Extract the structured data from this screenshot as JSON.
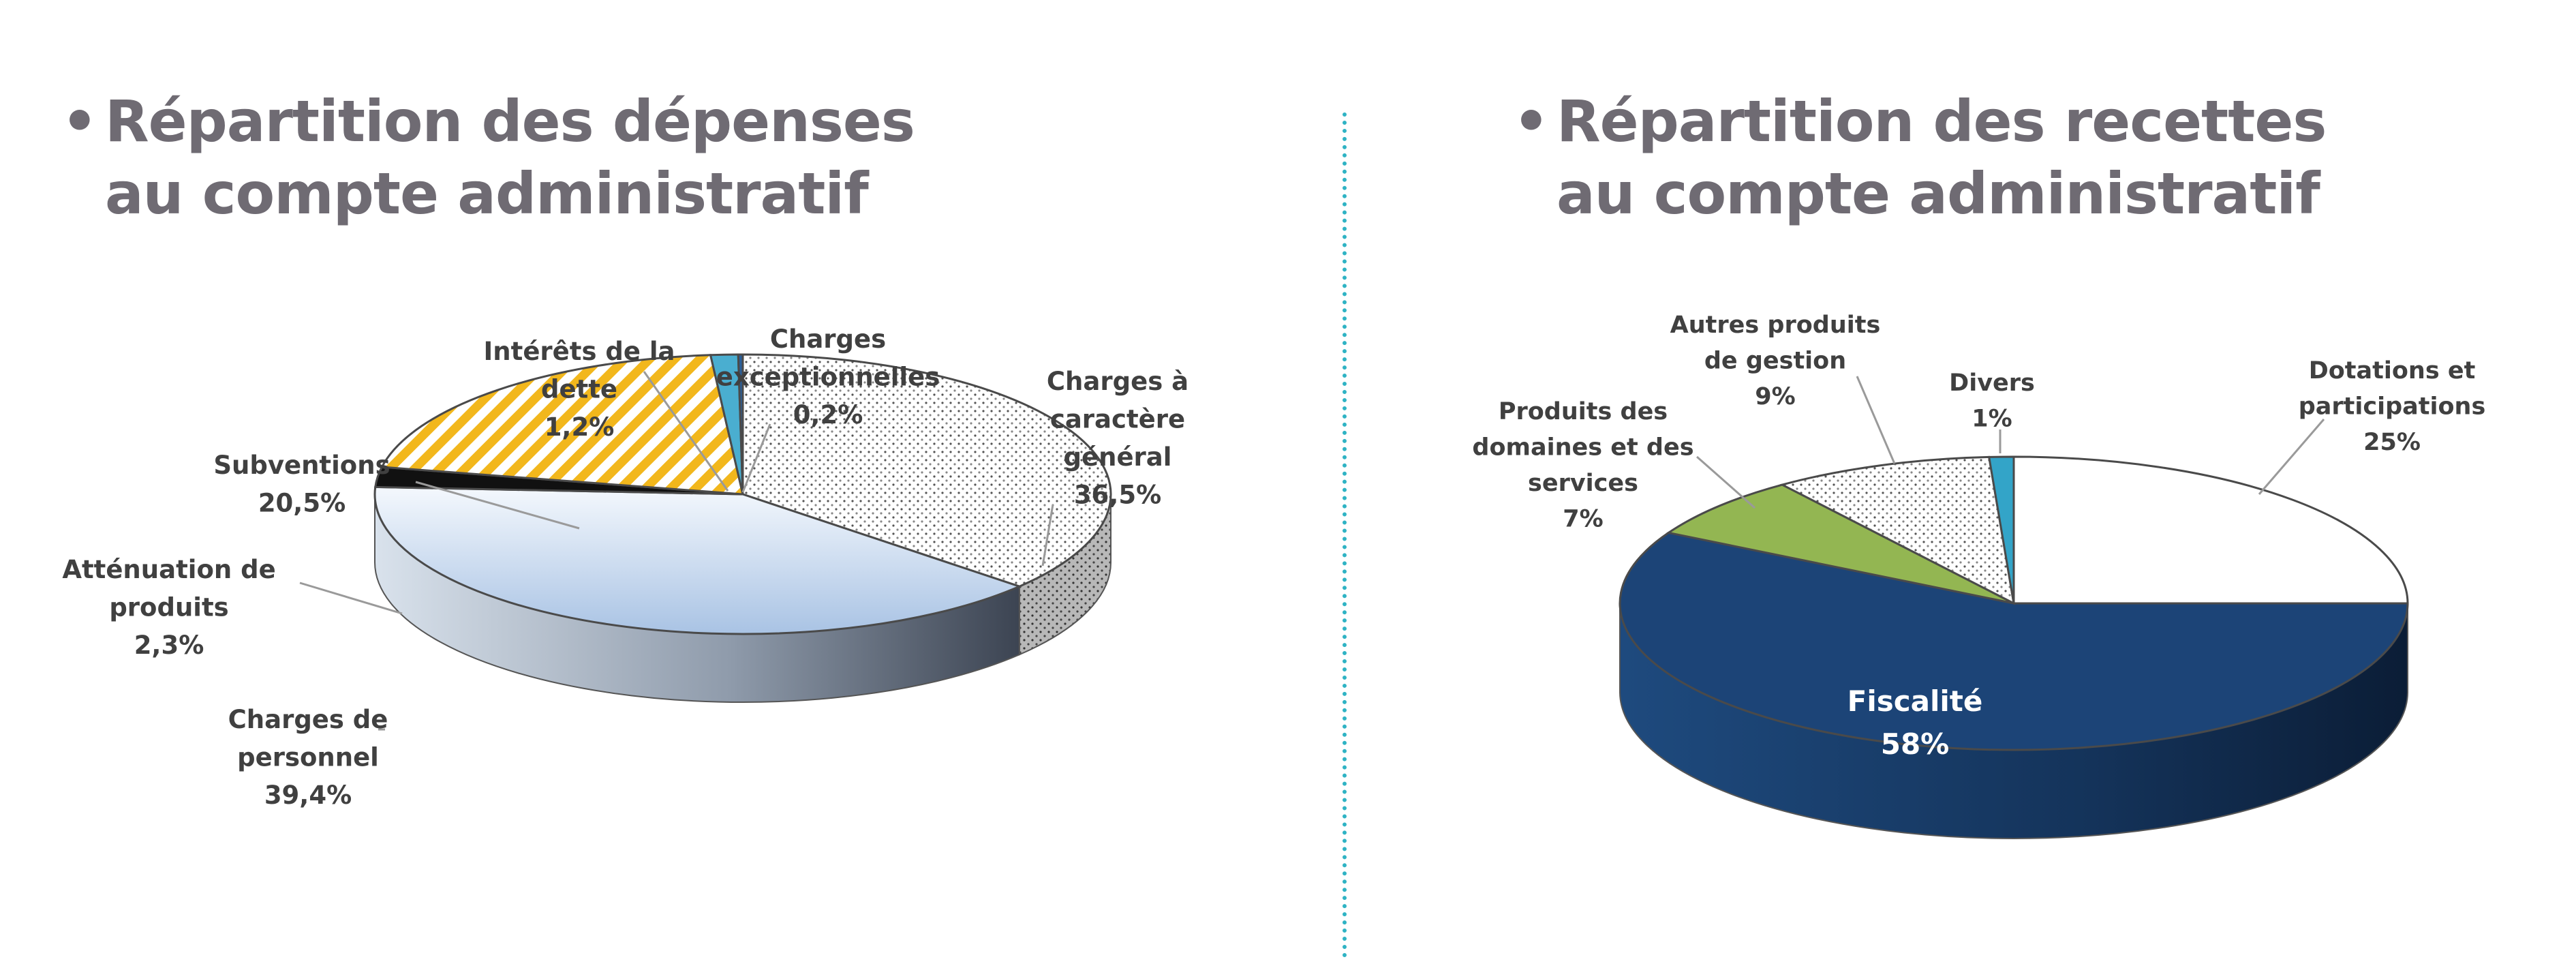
{
  "headings": {
    "left": {
      "bullet": "•",
      "line1": "Répartition des dépenses",
      "line2": "au compte administratif"
    },
    "right": {
      "bullet": "•",
      "line1": "Répartition des recettes",
      "line2": "au compte administratif"
    }
  },
  "colors": {
    "heading": "#6f6b73",
    "divider": "#2fb3c4"
  },
  "chart_data": [
    {
      "type": "pie",
      "title": "Répartition des dépenses au compte administratif",
      "style": "3d",
      "slices": [
        {
          "label": "Charges à caractère général",
          "value": 36.5,
          "value_label": "36,5%",
          "fill": "dots",
          "color": "#ffffff"
        },
        {
          "label": "Charges de personnel",
          "value": 39.4,
          "value_label": "39,4%",
          "fill": "gradient",
          "color": "#c6d9ef"
        },
        {
          "label": "Atténuation de produits",
          "value": 2.3,
          "value_label": "2,3%",
          "fill": "solid",
          "color": "#111111"
        },
        {
          "label": "Subventions",
          "value": 20.5,
          "value_label": "20,5%",
          "fill": "stripes",
          "color": "#f2b71c"
        },
        {
          "label": "Intérêts de la dette",
          "value": 1.2,
          "value_label": "1,2%",
          "fill": "solid",
          "color": "#4aaed0"
        },
        {
          "label": "Charges exceptionnelles",
          "value": 0.2,
          "value_label": "0,2%",
          "fill": "solid",
          "color": "#2a5f9a"
        }
      ]
    },
    {
      "type": "pie",
      "title": "Répartition des recettes au compte administratif",
      "style": "3d",
      "slices": [
        {
          "label": "Dotations et participations",
          "value": 25,
          "value_label": "25%",
          "fill": "solid",
          "color": "#ffffff"
        },
        {
          "label": "Fiscalité",
          "value": 58,
          "value_label": "58%",
          "fill": "solid",
          "color": "#1c4477"
        },
        {
          "label": "Produits des domaines et des services",
          "value": 7,
          "value_label": "7%",
          "fill": "solid",
          "color": "#93b652"
        },
        {
          "label": "Autres produits de gestion",
          "value": 9,
          "value_label": "9%",
          "fill": "dots",
          "color": "#ffffff"
        },
        {
          "label": "Divers",
          "value": 1,
          "value_label": "1%",
          "fill": "solid",
          "color": "#33a4c8"
        }
      ]
    }
  ]
}
